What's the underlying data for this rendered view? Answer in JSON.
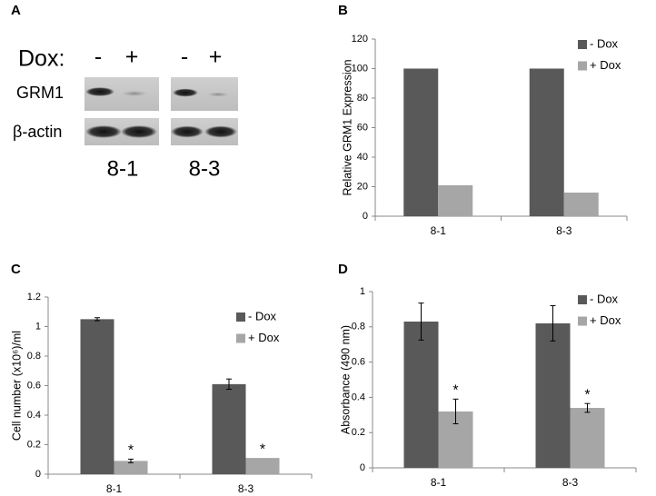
{
  "blot": {
    "panel_label": "A",
    "dox_label": "Dox:",
    "conditions": [
      "-",
      "+",
      "-",
      "+"
    ],
    "rows": [
      "GRM1",
      "β-actin"
    ],
    "lines": [
      "8-1",
      "8-3"
    ]
  },
  "chart_data": [
    {
      "type": "bar",
      "panel_label": "B",
      "y_label": "Relative GRM1 Expression",
      "categories": [
        "8-1",
        "8-3"
      ],
      "series": [
        {
          "name": "- Dox",
          "color": "#595959",
          "values": [
            100,
            100
          ]
        },
        {
          "name": "+ Dox",
          "color": "#a6a6a6",
          "values": [
            21,
            16
          ]
        }
      ],
      "ylim": [
        0,
        120
      ],
      "yticks": [
        0,
        20,
        40,
        60,
        80,
        100,
        120
      ],
      "legend": "right"
    },
    {
      "type": "bar",
      "panel_label": "C",
      "y_label": "Cell number (x10⁶)/ml",
      "categories": [
        "8-1",
        "8-3"
      ],
      "series": [
        {
          "name": "- Dox",
          "color": "#595959",
          "values": [
            1.05,
            0.61
          ],
          "errors": [
            0.01,
            0.035
          ]
        },
        {
          "name": "+ Dox",
          "color": "#a6a6a6",
          "values": [
            0.09,
            0.11
          ],
          "errors": [
            0.012,
            0
          ],
          "annotations": [
            "*",
            "*"
          ]
        }
      ],
      "ylim": [
        0,
        1.2
      ],
      "yticks": [
        0,
        0.2,
        0.4,
        0.6,
        0.8,
        1,
        1.2
      ],
      "legend": "right"
    },
    {
      "type": "bar",
      "panel_label": "D",
      "y_label": "Absorbance (490 nm)",
      "categories": [
        "8-1",
        "8-3"
      ],
      "series": [
        {
          "name": "- Dox",
          "color": "#595959",
          "values": [
            0.83,
            0.82
          ],
          "errors": [
            0.105,
            0.1
          ]
        },
        {
          "name": "+ Dox",
          "color": "#a6a6a6",
          "values": [
            0.32,
            0.34
          ],
          "errors": [
            0.07,
            0.025
          ],
          "annotations": [
            "*",
            "*"
          ]
        }
      ],
      "ylim": [
        0,
        1
      ],
      "yticks": [
        0,
        0.2,
        0.4,
        0.6,
        0.8,
        1
      ],
      "legend": "right"
    }
  ]
}
